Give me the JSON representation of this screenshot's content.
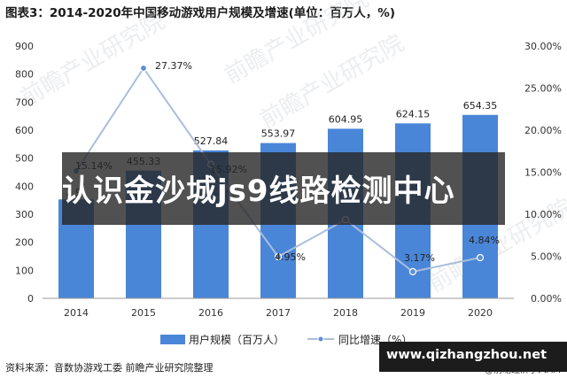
{
  "header": {
    "title": "图表3：2014-2020年中国移动游戏用户规模及增速(单位：百万人，%)"
  },
  "chart_data": {
    "type": "bar",
    "categories": [
      "2014",
      "2015",
      "2016",
      "2017",
      "2018",
      "2019",
      "2020"
    ],
    "series": [
      {
        "name": "用户规模（百万人）",
        "kind": "bar",
        "axis": "left",
        "values": [
          352.9,
          455.33,
          527.84,
          553.97,
          604.95,
          624.15,
          654.35
        ],
        "labels": [
          "",
          "455.33",
          "527.84",
          "553.97",
          "604.95",
          "624.15",
          "654.35"
        ],
        "color": "#4a86d8"
      },
      {
        "name": "同比增速（%）",
        "kind": "line",
        "axis": "right",
        "values": [
          15.14,
          27.37,
          15.92,
          4.95,
          9.35,
          3.17,
          4.84
        ],
        "labels": [
          "15.14%",
          "27.37%",
          "15.92%",
          "4.95%",
          "",
          "3.17%",
          "4.84%"
        ],
        "color": "#aabedb"
      }
    ],
    "y_left": {
      "lim": [
        0,
        900
      ],
      "ticks": [
        "0",
        "100",
        "200",
        "300",
        "400",
        "500",
        "600",
        "700",
        "800",
        "900"
      ]
    },
    "y_right": {
      "lim": [
        0,
        30
      ],
      "ticks": [
        "0.00%",
        "5.00%",
        "10.00%",
        "15.00%",
        "20.00%",
        "25.00%",
        "30.00%"
      ]
    },
    "partial_label_2014": "2.9",
    "grid": false,
    "legend": "bottom"
  },
  "footer": {
    "source": "资料来源：音数协游戏工委 前瞻产业研究院整理",
    "credit": "@前瞻经济学人APP"
  },
  "watermarks": [
    "前瞻产业研究院",
    "前瞻产业研究院",
    "前瞻产业研究院",
    "前瞻产业研究院"
  ],
  "overlay": {
    "banner_text": "认识金沙城js9线路检测中心",
    "url_text": "www.qizhangzhou.net"
  }
}
